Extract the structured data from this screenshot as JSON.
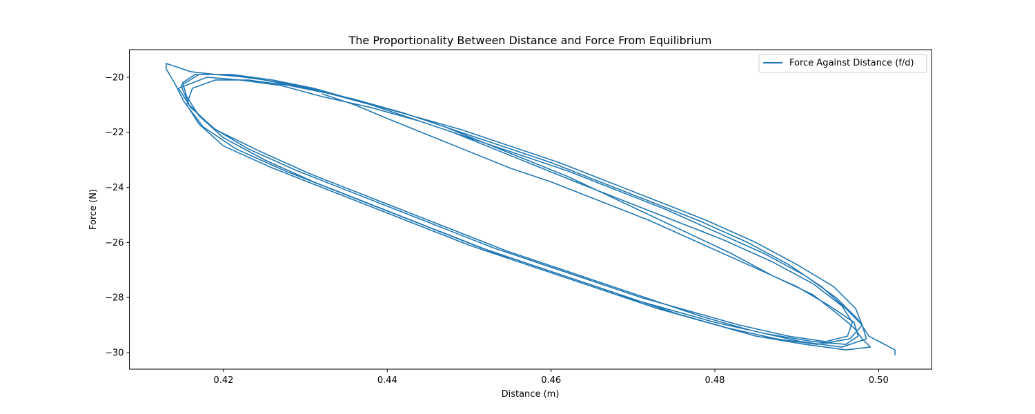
{
  "chart_data": {
    "type": "line",
    "title": "The Proportionality Between Distance and Force From Equilibrium",
    "xlabel": "Distance (m)",
    "ylabel": "Force (N)",
    "xlim": [
      0.4085,
      0.5065
    ],
    "ylim": [
      -30.6,
      -19.0
    ],
    "xticks": [
      0.42,
      0.44,
      0.46,
      0.48,
      0.5
    ],
    "xtick_labels": [
      "0.42",
      "0.44",
      "0.46",
      "0.48",
      "0.50"
    ],
    "yticks": [
      -20,
      -22,
      -24,
      -26,
      -28,
      -30
    ],
    "ytick_labels": [
      "−20",
      "−22",
      "−24",
      "−26",
      "−28",
      "−30"
    ],
    "grid": false,
    "legend_position": "top-right",
    "series": [
      {
        "name": "Force Against Distance (f/d)",
        "color": "#1f77b4",
        "x": [
          0.432,
          0.436,
          0.44,
          0.445,
          0.45,
          0.455,
          0.46,
          0.466,
          0.472,
          0.478,
          0.484,
          0.49,
          0.494,
          0.497,
          0.4975,
          0.496,
          0.492,
          0.486,
          0.48,
          0.474,
          0.468,
          0.462,
          0.456,
          0.45,
          0.444,
          0.438,
          0.432,
          0.426,
          0.42,
          0.417,
          0.4155,
          0.4162,
          0.419,
          0.423,
          0.428,
          0.433,
          0.438,
          0.443,
          0.448,
          0.453,
          0.458,
          0.463,
          0.469,
          0.475,
          0.481,
          0.487,
          0.492,
          0.4955,
          0.4968,
          0.4962,
          0.4935,
          0.489,
          0.483,
          0.477,
          0.471,
          0.465,
          0.459,
          0.453,
          0.447,
          0.441,
          0.435,
          0.429,
          0.423,
          0.4185,
          0.4158,
          0.4148,
          0.417,
          0.421,
          0.426,
          0.431,
          0.437,
          0.443,
          0.449,
          0.455,
          0.461,
          0.467,
          0.473,
          0.479,
          0.485,
          0.49,
          0.4945,
          0.4972,
          0.498,
          0.4965,
          0.4925,
          0.4875,
          0.4815,
          0.4755,
          0.4695,
          0.4635,
          0.4575,
          0.4515,
          0.4455,
          0.4395,
          0.4335,
          0.4275,
          0.4215,
          0.4175,
          0.4152,
          0.414,
          0.413,
          0.413,
          0.416,
          0.419,
          0.423,
          0.427,
          0.432,
          0.437,
          0.442,
          0.447,
          0.452,
          0.457,
          0.462,
          0.467,
          0.472,
          0.477,
          0.482,
          0.487,
          0.492,
          0.495,
          0.497,
          0.498,
          0.499,
          0.496,
          0.491,
          0.485,
          0.479,
          0.473,
          0.467,
          0.461,
          0.455,
          0.449,
          0.443,
          0.437,
          0.431,
          0.425,
          0.42,
          0.417,
          0.4155,
          0.415,
          0.4165,
          0.42,
          0.425,
          0.43,
          0.436,
          0.442,
          0.448,
          0.454,
          0.46,
          0.466,
          0.472,
          0.478,
          0.484,
          0.489,
          0.493,
          0.496,
          0.498,
          0.4985,
          0.4955,
          0.4905,
          0.4845,
          0.4785,
          0.4725,
          0.4665,
          0.4605,
          0.4545,
          0.4485,
          0.4425,
          0.4365,
          0.4305,
          0.4245,
          0.419,
          0.416,
          0.4145,
          0.418,
          0.422,
          0.427,
          0.432,
          0.438,
          0.444,
          0.45,
          0.456,
          0.462,
          0.468,
          0.474,
          0.48,
          0.486,
          0.491,
          0.4948,
          0.4975,
          0.4988,
          0.502,
          0.502
        ],
        "y": [
          -20.6,
          -21.0,
          -21.5,
          -22.1,
          -22.7,
          -23.3,
          -23.8,
          -24.5,
          -25.2,
          -26.0,
          -26.8,
          -27.6,
          -28.3,
          -28.9,
          -29.4,
          -29.7,
          -29.6,
          -29.3,
          -28.9,
          -28.4,
          -27.9,
          -27.3,
          -26.7,
          -26.1,
          -25.4,
          -24.7,
          -24.0,
          -23.3,
          -22.5,
          -21.7,
          -21.0,
          -20.4,
          -20.1,
          -20.1,
          -20.3,
          -20.6,
          -21.0,
          -21.5,
          -22.0,
          -22.6,
          -23.2,
          -23.8,
          -24.5,
          -25.2,
          -25.9,
          -26.7,
          -27.5,
          -28.3,
          -28.9,
          -29.4,
          -29.6,
          -29.4,
          -29.0,
          -28.5,
          -28.0,
          -27.4,
          -26.8,
          -26.2,
          -25.5,
          -24.8,
          -24.1,
          -23.4,
          -22.6,
          -21.8,
          -21.0,
          -20.3,
          -19.9,
          -19.9,
          -20.1,
          -20.4,
          -20.9,
          -21.4,
          -21.9,
          -22.5,
          -23.1,
          -23.8,
          -24.5,
          -25.2,
          -26.0,
          -26.8,
          -27.6,
          -28.4,
          -29.0,
          -29.5,
          -29.7,
          -29.5,
          -29.1,
          -28.6,
          -28.0,
          -27.4,
          -26.8,
          -26.2,
          -25.5,
          -24.8,
          -24.1,
          -23.4,
          -22.6,
          -21.8,
          -20.9,
          -20.2,
          -19.7,
          -19.5,
          -19.8,
          -19.9,
          -20.0,
          -20.2,
          -20.5,
          -20.9,
          -21.3,
          -21.8,
          -22.4,
          -23.0,
          -23.6,
          -24.3,
          -25.0,
          -25.7,
          -26.4,
          -27.2,
          -27.9,
          -28.6,
          -29.1,
          -29.5,
          -29.8,
          -29.9,
          -29.7,
          -29.4,
          -28.9,
          -28.4,
          -27.8,
          -27.2,
          -26.6,
          -25.9,
          -25.2,
          -24.5,
          -23.8,
          -23.0,
          -22.2,
          -21.4,
          -20.7,
          -20.2,
          -19.9,
          -19.9,
          -20.1,
          -20.4,
          -20.8,
          -21.3,
          -21.9,
          -22.5,
          -23.1,
          -23.8,
          -24.5,
          -25.2,
          -26.0,
          -26.8,
          -27.6,
          -28.4,
          -29.0,
          -29.5,
          -29.8,
          -29.6,
          -29.2,
          -28.7,
          -28.1,
          -27.5,
          -26.9,
          -26.3,
          -25.6,
          -24.9,
          -24.2,
          -23.5,
          -22.7,
          -21.9,
          -21.1,
          -20.4,
          -20.0,
          -20.1,
          -20.3,
          -20.7,
          -21.1,
          -21.6,
          -22.2,
          -22.8,
          -23.4,
          -24.1,
          -24.8,
          -25.6,
          -26.4,
          -27.2,
          -28.0,
          -28.8,
          -29.4,
          -29.9,
          -30.1
        ]
      }
    ]
  }
}
